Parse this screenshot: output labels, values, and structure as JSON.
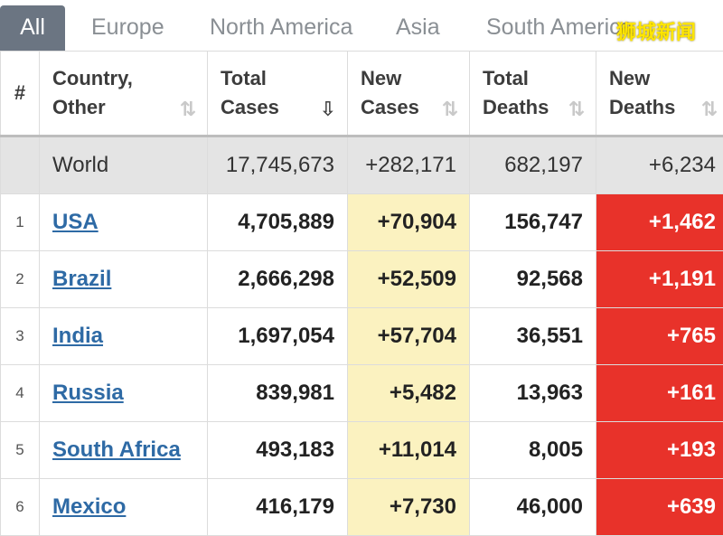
{
  "tabs": [
    "All",
    "Europe",
    "North America",
    "Asia",
    "South America"
  ],
  "watermark": "狮城新闻",
  "headers": {
    "num": "#",
    "country": [
      "Country,",
      "Other"
    ],
    "total_cases": [
      "Total",
      "Cases"
    ],
    "new_cases": [
      "New",
      "Cases"
    ],
    "total_deaths": [
      "Total",
      "Deaths"
    ],
    "new_deaths": [
      "New",
      "Deaths"
    ]
  },
  "icons": {
    "sort": "sort-icon",
    "sort_active": "sort-desc-icon"
  },
  "colors": {
    "new_cases_bg": "#fbf2c0",
    "new_deaths_bg": "#e8322a",
    "link": "#2e6aa5",
    "tab_active": "#6b7582"
  },
  "world": {
    "name": "World",
    "total_cases": "17,745,673",
    "new_cases": "+282,171",
    "total_deaths": "682,197",
    "new_deaths": "+6,234"
  },
  "rows": [
    {
      "idx": "1",
      "country": "USA",
      "total_cases": "4,705,889",
      "new_cases": "+70,904",
      "total_deaths": "156,747",
      "new_deaths": "+1,462"
    },
    {
      "idx": "2",
      "country": "Brazil",
      "total_cases": "2,666,298",
      "new_cases": "+52,509",
      "total_deaths": "92,568",
      "new_deaths": "+1,191"
    },
    {
      "idx": "3",
      "country": "India",
      "total_cases": "1,697,054",
      "new_cases": "+57,704",
      "total_deaths": "36,551",
      "new_deaths": "+765"
    },
    {
      "idx": "4",
      "country": "Russia",
      "total_cases": "839,981",
      "new_cases": "+5,482",
      "total_deaths": "13,963",
      "new_deaths": "+161"
    },
    {
      "idx": "5",
      "country": "South Africa",
      "total_cases": "493,183",
      "new_cases": "+11,014",
      "total_deaths": "8,005",
      "new_deaths": "+193"
    },
    {
      "idx": "6",
      "country": "Mexico",
      "total_cases": "416,179",
      "new_cases": "+7,730",
      "total_deaths": "46,000",
      "new_deaths": "+639"
    }
  ]
}
